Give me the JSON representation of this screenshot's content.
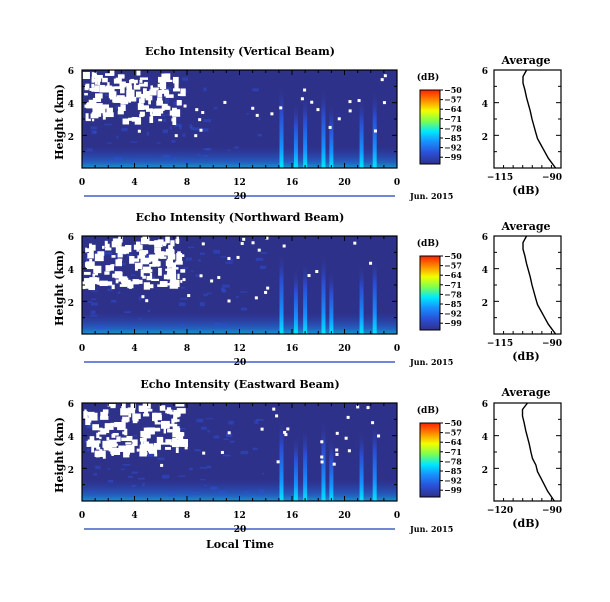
{
  "colors": {
    "background_field": "#2e3189",
    "ink": "#000000",
    "time_bar": "#1f3fbf",
    "colormap": [
      "#ff2200",
      "#ff8a00",
      "#f2ff00",
      "#7dff4f",
      "#00e8ff",
      "#1790ff",
      "#2b4fd8",
      "#2e3189"
    ]
  },
  "shared": {
    "colorbar_unit": "(dB)",
    "colorbar_ticks": [
      "−50",
      "−57",
      "−64",
      "−71",
      "−78",
      "−85",
      "−92",
      "−99"
    ],
    "x_ticks": [
      "0",
      "4",
      "8",
      "12",
      "16",
      "20",
      "0"
    ],
    "y_ticks": [
      "6",
      "4",
      "2"
    ],
    "y_label": "Height (km)",
    "date_label": "Jun. 2015",
    "day_label": "20",
    "x_label": "Local Time",
    "avg_title": "Average",
    "avg_xlabel": "(dB)",
    "avg_y_ticks": [
      "6",
      "4",
      "2"
    ]
  },
  "chart_data": [
    {
      "type": "heatmap",
      "title": "Echo Intensity (Vertical Beam)",
      "ylabel": "Height (km)",
      "xlim": [
        0,
        24
      ],
      "ylim": [
        0,
        6
      ],
      "zlim": [
        -99,
        -50
      ],
      "zunit": "(dB)",
      "plumes_hours": [
        15.2,
        16.3,
        17.0,
        18.4,
        19.0,
        21.3,
        22.3
      ]
    },
    {
      "type": "line",
      "title": "Average",
      "xlabel": "(dB)",
      "x_ticks": [
        "−115",
        "−90"
      ],
      "xlim": [
        -122,
        -85
      ],
      "ylim": [
        0,
        6
      ],
      "x": [
        -104,
        -106,
        -106,
        -105,
        -104,
        -103,
        -102,
        -101,
        -100,
        -99,
        -98,
        -96,
        -94,
        -92,
        -90,
        -88
      ],
      "y": [
        6.0,
        5.6,
        5.2,
        4.8,
        4.3,
        3.9,
        3.5,
        3.0,
        2.6,
        2.2,
        1.8,
        1.4,
        1.0,
        0.6,
        0.3,
        0.0
      ]
    },
    {
      "type": "heatmap",
      "title": "Echo Intensity (Northward Beam)",
      "ylabel": "Height (km)",
      "xlim": [
        0,
        24
      ],
      "ylim": [
        0,
        6
      ],
      "zlim": [
        -99,
        -50
      ],
      "zunit": "(dB)",
      "plumes_hours": [
        15.2,
        16.3,
        17.0,
        18.4,
        19.0,
        21.3,
        22.3
      ]
    },
    {
      "type": "line",
      "title": "Average",
      "xlabel": "(dB)",
      "x_ticks": [
        "−115",
        "−90"
      ],
      "xlim": [
        -122,
        -85
      ],
      "ylim": [
        0,
        6
      ],
      "x": [
        -104,
        -106,
        -106,
        -105,
        -104,
        -103,
        -102,
        -101,
        -100,
        -99,
        -98,
        -96,
        -94,
        -92,
        -90,
        -88
      ],
      "y": [
        6.0,
        5.6,
        5.2,
        4.8,
        4.3,
        3.9,
        3.5,
        3.0,
        2.6,
        2.2,
        1.8,
        1.4,
        1.0,
        0.6,
        0.3,
        0.0
      ]
    },
    {
      "type": "heatmap",
      "title": "Echo Intensity (Eastward Beam)",
      "ylabel": "Height (km)",
      "xlim": [
        0,
        24
      ],
      "ylim": [
        0,
        6
      ],
      "zlim": [
        -99,
        -50
      ],
      "zunit": "(dB)",
      "plumes_hours": [
        15.2,
        16.3,
        17.0,
        18.4,
        19.0,
        21.3,
        22.3
      ]
    },
    {
      "type": "line",
      "title": "Average",
      "xlabel": "(dB)",
      "x_ticks": [
        "−120",
        "−90"
      ],
      "xlim": [
        -125,
        -85
      ],
      "ylim": [
        0,
        6
      ],
      "x": [
        -105,
        -108,
        -108,
        -107,
        -106,
        -105,
        -104,
        -103,
        -102,
        -100,
        -99,
        -97,
        -95,
        -93,
        -91,
        -89
      ],
      "y": [
        6.0,
        5.6,
        5.2,
        4.8,
        4.3,
        3.9,
        3.5,
        3.0,
        2.6,
        2.2,
        1.8,
        1.4,
        1.0,
        0.6,
        0.3,
        0.0
      ]
    }
  ]
}
